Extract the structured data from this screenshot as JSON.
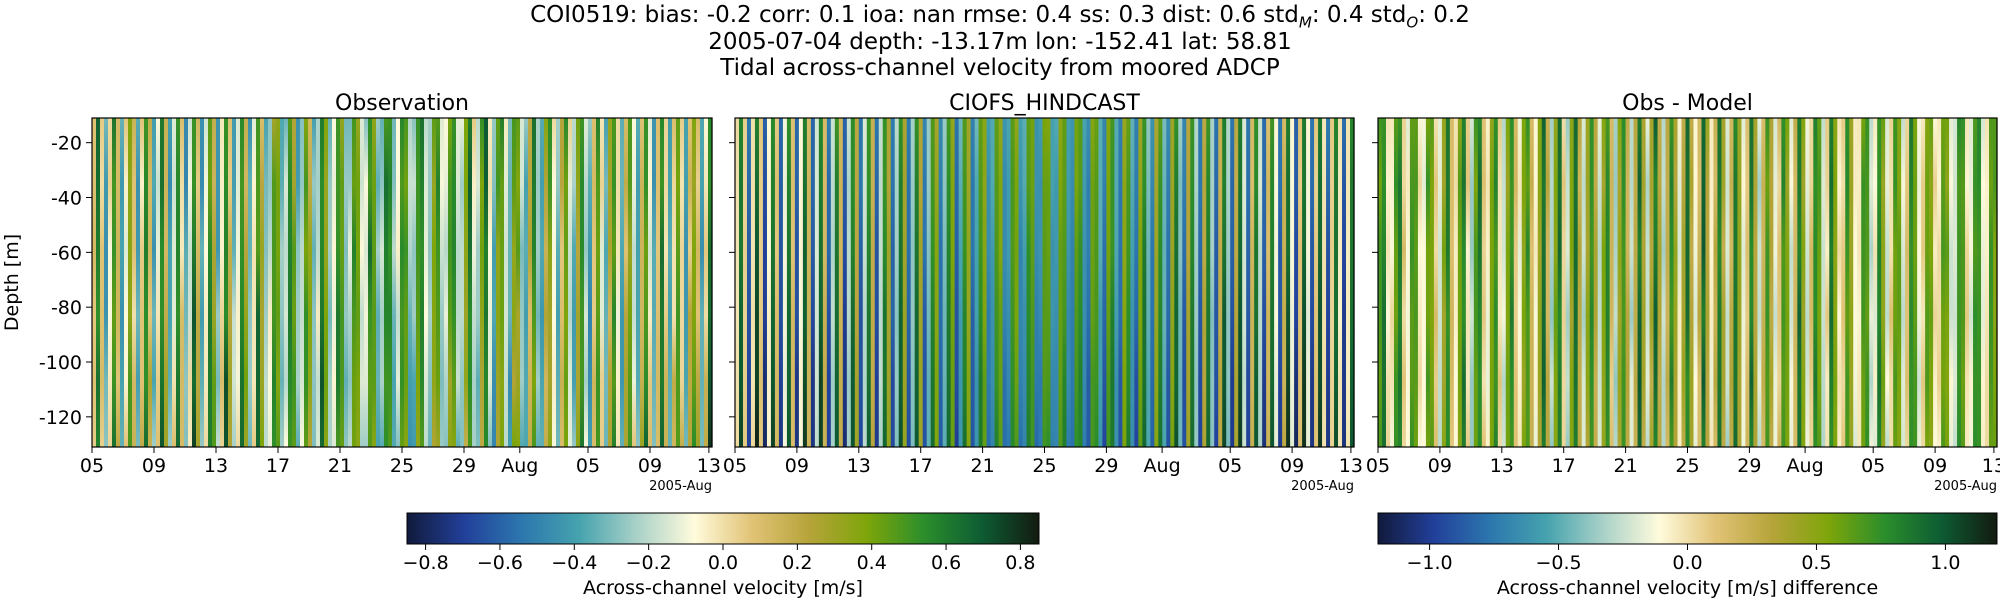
{
  "chart_data": {
    "type": "heatmap",
    "suptitle": {
      "line1_prefix": "COI0519: bias: -0.2  corr: 0.1  ioa: nan  rmse: 0.4  ss: 0.3  dist: 0.6  std",
      "line1_sub_m": "M",
      "line1_mid": ": 0.4  std",
      "line1_sub_o": "O",
      "line1_suffix": ": 0.2",
      "line2": "2005-07-04 depth: -13.17m lon: -152.41 lat: 58.81",
      "line3": "Tidal across-channel velocity from moored ADCP"
    },
    "ylabel": "Depth [m]",
    "ylim": [
      -131,
      -11
    ],
    "yticks": [
      "-20",
      "-40",
      "-60",
      "-80",
      "-100",
      "-120"
    ],
    "ytick_values": [
      -20,
      -40,
      -60,
      -80,
      -100,
      -120
    ],
    "xticks": [
      "05",
      "09",
      "13",
      "17",
      "21",
      "25",
      "29",
      "Aug",
      "05",
      "09",
      "13"
    ],
    "x_offset_label": "2005-Aug",
    "x_range_days": [
      "2005-07-05",
      "2005-08-14"
    ],
    "panels": [
      {
        "title": "Observation",
        "cmap": "delta",
        "vlim": [
          -0.85,
          0.85
        ]
      },
      {
        "title": "CIOFS_HINDCAST",
        "cmap": "delta",
        "vlim": [
          -0.85,
          0.85
        ]
      },
      {
        "title": "Obs - Model",
        "cmap": "delta",
        "vlim": [
          -1.2,
          1.2
        ]
      }
    ],
    "colorbars": [
      {
        "label": "Across-channel velocity [m/s]",
        "range": [
          -0.85,
          0.85
        ],
        "ticks": [
          "−0.8",
          "−0.6",
          "−0.4",
          "−0.2",
          "0.0",
          "0.2",
          "0.4",
          "0.6",
          "0.8"
        ],
        "tick_values": [
          -0.8,
          -0.6,
          -0.4,
          -0.2,
          0.0,
          0.2,
          0.4,
          0.6,
          0.8
        ]
      },
      {
        "label": "Across-channel velocity [m/s] difference",
        "range": [
          -1.2,
          1.2
        ],
        "ticks": [
          "−1.0",
          "−0.5",
          "0.0",
          "0.5",
          "1.0"
        ],
        "tick_values": [
          -1.0,
          -0.5,
          0.0,
          0.5,
          1.0
        ]
      }
    ],
    "colormap_stops": [
      "#111a3c",
      "#22409a",
      "#2c77ae",
      "#46a3ae",
      "#a9d1c8",
      "#fffbdc",
      "#e1c376",
      "#b6a43a",
      "#7ea50a",
      "#2b8e2b",
      "#0d5c33",
      "#131a10"
    ]
  }
}
